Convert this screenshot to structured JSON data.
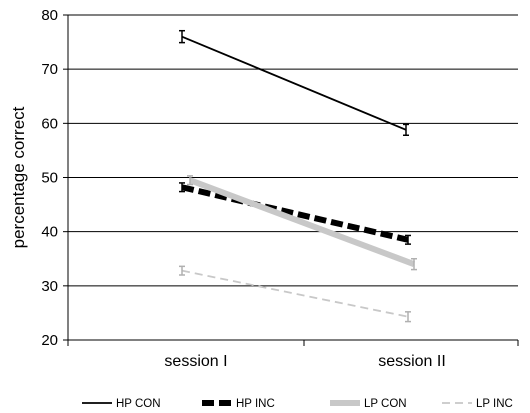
{
  "chart_data": {
    "type": "line",
    "title": "",
    "xlabel": "",
    "ylabel": "percentage correct",
    "categories": [
      "session I",
      "session II"
    ],
    "ylim": [
      20,
      80
    ],
    "yticks": [
      20,
      30,
      40,
      50,
      60,
      70,
      80
    ],
    "grid": "horizontal",
    "legend_position": "bottom",
    "series": [
      {
        "name": "HP CON",
        "values": [
          76.0,
          58.8
        ],
        "errors": [
          1.1,
          1.0
        ],
        "color": "#000000",
        "style": "solid-thin"
      },
      {
        "name": "HP INC",
        "values": [
          48.2,
          38.5
        ],
        "errors": [
          0.8,
          0.8
        ],
        "color": "#000000",
        "style": "dashed-thick"
      },
      {
        "name": "LP CON",
        "values": [
          49.5,
          34.0
        ],
        "errors": [
          0.8,
          1.0
        ],
        "color": "#c8c8c8",
        "style": "solid-thick"
      },
      {
        "name": "LP INC",
        "values": [
          32.8,
          24.3
        ],
        "errors": [
          0.8,
          0.9
        ],
        "color": "#c8c8c8",
        "style": "dashed-thin"
      }
    ]
  }
}
